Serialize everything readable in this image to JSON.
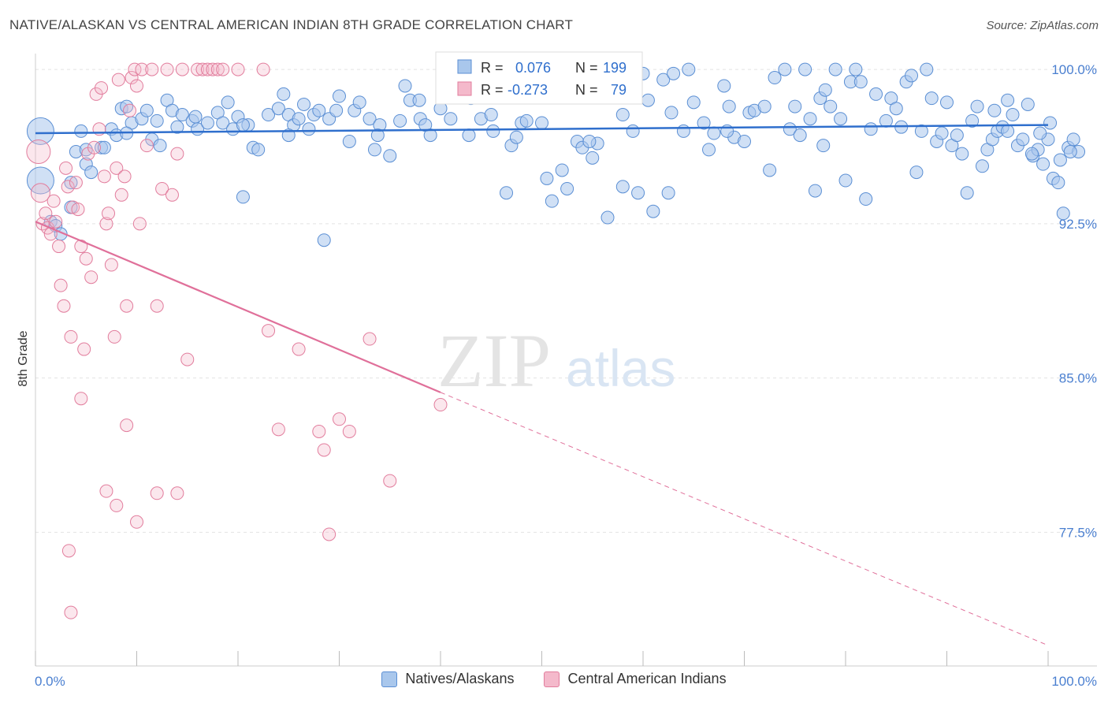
{
  "header": {
    "title": "NATIVE/ALASKAN VS CENTRAL AMERICAN INDIAN 8TH GRADE CORRELATION CHART",
    "source": "Source: ZipAtlas.com"
  },
  "watermark": {
    "zip": "ZIP",
    "atlas": "atlas"
  },
  "colors": {
    "blue_fill": "#a9c7ec",
    "blue_stroke": "#5b8fd4",
    "blue_line": "#2f6fcd",
    "pink_fill": "#f4b9cb",
    "pink_stroke": "#e27d9d",
    "pink_line": "#e0709a",
    "tick_label": "#4a7fd0"
  },
  "stats_box": {
    "rows": [
      {
        "r_label": "R =",
        "r_value": "0.076",
        "n_label": "N =",
        "n_value": "199"
      },
      {
        "r_label": "R =",
        "r_value": "-0.273",
        "n_label": "N =",
        "n_value": "79"
      }
    ]
  },
  "legend": [
    {
      "label": "Natives/Alaskans"
    },
    {
      "label": "Central American Indians"
    }
  ],
  "chart_data": {
    "type": "scatter",
    "ylabel": "8th Grade",
    "xlim": [
      0,
      100
    ],
    "ylim": [
      71,
      101
    ],
    "x_tick_labels": [
      "0.0%",
      "100.0%"
    ],
    "y_ticks": [
      77.5,
      85.0,
      92.5,
      100.0
    ],
    "y_tick_labels": [
      "77.5%",
      "85.0%",
      "92.5%",
      "100.0%"
    ],
    "grid": true,
    "legend_position": "bottom-center",
    "series": [
      {
        "name": "Natives/Alaskans",
        "trend": {
          "x0": 0,
          "y0": 96.9,
          "x1": 100,
          "y1": 97.3
        },
        "points": [
          [
            0.5,
            97.0
          ],
          [
            0.5,
            94.6
          ],
          [
            1.5,
            92.6
          ],
          [
            2.0,
            92.4
          ],
          [
            2.5,
            92.0
          ],
          [
            3.5,
            94.5
          ],
          [
            3.5,
            93.3
          ],
          [
            4.0,
            96.0
          ],
          [
            4.5,
            97.0
          ],
          [
            5,
            96.1
          ],
          [
            5,
            95.4
          ],
          [
            5.5,
            95.0
          ],
          [
            6.5,
            96.2
          ],
          [
            7.5,
            97.1
          ],
          [
            8,
            96.8
          ],
          [
            8.5,
            98.1
          ],
          [
            9,
            98.2
          ],
          [
            9.5,
            97.4
          ],
          [
            10.5,
            97.6
          ],
          [
            11,
            98.0
          ],
          [
            11.5,
            96.6
          ],
          [
            12,
            97.5
          ],
          [
            13,
            98.5
          ],
          [
            13.5,
            98.0
          ],
          [
            14,
            97.2
          ],
          [
            14.5,
            97.8
          ],
          [
            15.5,
            97.5
          ],
          [
            16,
            97.1
          ],
          [
            17,
            97.4
          ],
          [
            18,
            97.9
          ],
          [
            18.5,
            97.4
          ],
          [
            19,
            98.4
          ],
          [
            19.5,
            97.1
          ],
          [
            20,
            97.7
          ],
          [
            20.5,
            93.8
          ],
          [
            21,
            97.3
          ],
          [
            21.5,
            96.2
          ],
          [
            22,
            96.1
          ],
          [
            23,
            97.8
          ],
          [
            24,
            98.1
          ],
          [
            24.5,
            98.8
          ],
          [
            25,
            97.8
          ],
          [
            25.5,
            97.3
          ],
          [
            26,
            97.6
          ],
          [
            26.5,
            98.3
          ],
          [
            27,
            97.1
          ],
          [
            27.5,
            97.8
          ],
          [
            28,
            98.0
          ],
          [
            28.5,
            91.7
          ],
          [
            29,
            97.6
          ],
          [
            30,
            98.7
          ],
          [
            31,
            96.5
          ],
          [
            31.5,
            98.0
          ],
          [
            32,
            98.4
          ],
          [
            33,
            97.6
          ],
          [
            33.5,
            96.1
          ],
          [
            34,
            97.3
          ],
          [
            35,
            95.8
          ],
          [
            36,
            97.5
          ],
          [
            36.5,
            99.2
          ],
          [
            37,
            98.5
          ],
          [
            38,
            97.6
          ],
          [
            38.5,
            97.3
          ],
          [
            39,
            96.8
          ],
          [
            40,
            98.1
          ],
          [
            40.5,
            99.1
          ],
          [
            41,
            97.6
          ],
          [
            42,
            98.8
          ],
          [
            42.5,
            99.0
          ],
          [
            43,
            98.6
          ],
          [
            44,
            97.6
          ],
          [
            45,
            97.8
          ],
          [
            46,
            99.5
          ],
          [
            46.5,
            94.0
          ],
          [
            47,
            96.3
          ],
          [
            47.5,
            96.7
          ],
          [
            48,
            97.4
          ],
          [
            49,
            99.8
          ],
          [
            49.5,
            99.4
          ],
          [
            50,
            97.4
          ],
          [
            50.5,
            94.7
          ],
          [
            51,
            93.6
          ],
          [
            52,
            95.1
          ],
          [
            52.5,
            94.2
          ],
          [
            53,
            99.1
          ],
          [
            53.5,
            96.5
          ],
          [
            54,
            96.2
          ],
          [
            55,
            95.7
          ],
          [
            55.5,
            96.4
          ],
          [
            56,
            99.0
          ],
          [
            56.5,
            92.8
          ],
          [
            57,
            99.5
          ],
          [
            58,
            94.3
          ],
          [
            58.5,
            99.1
          ],
          [
            59,
            97.0
          ],
          [
            59.5,
            94.0
          ],
          [
            60,
            99.8
          ],
          [
            60.5,
            98.5
          ],
          [
            61,
            93.1
          ],
          [
            62,
            99.5
          ],
          [
            62.5,
            94.0
          ],
          [
            63,
            99.8
          ],
          [
            64,
            97.0
          ],
          [
            64.5,
            100.0
          ],
          [
            65,
            98.4
          ],
          [
            66,
            97.4
          ],
          [
            66.5,
            96.1
          ],
          [
            67,
            96.9
          ],
          [
            68,
            99.2
          ],
          [
            68.5,
            98.2
          ],
          [
            69,
            96.7
          ],
          [
            70,
            96.5
          ],
          [
            70.5,
            97.9
          ],
          [
            71,
            98.0
          ],
          [
            72,
            98.2
          ],
          [
            72.5,
            95.1
          ],
          [
            73,
            99.6
          ],
          [
            74,
            100.0
          ],
          [
            74.5,
            97.1
          ],
          [
            75,
            98.2
          ],
          [
            75.5,
            96.8
          ],
          [
            76,
            100.0
          ],
          [
            76.5,
            97.6
          ],
          [
            77,
            94.1
          ],
          [
            77.5,
            98.6
          ],
          [
            78,
            99.0
          ],
          [
            78.5,
            98.2
          ],
          [
            79,
            100.0
          ],
          [
            79.5,
            97.6
          ],
          [
            80,
            94.6
          ],
          [
            80.5,
            99.4
          ],
          [
            81,
            100.0
          ],
          [
            81.5,
            99.4
          ],
          [
            82,
            93.7
          ],
          [
            82.5,
            97.1
          ],
          [
            83,
            98.8
          ],
          [
            84,
            97.5
          ],
          [
            84.5,
            98.6
          ],
          [
            85,
            98.1
          ],
          [
            85.5,
            97.2
          ],
          [
            86,
            99.4
          ],
          [
            86.5,
            99.7
          ],
          [
            87,
            95.0
          ],
          [
            87.5,
            97.0
          ],
          [
            88,
            100.0
          ],
          [
            88.5,
            98.6
          ],
          [
            89,
            96.5
          ],
          [
            89.5,
            96.9
          ],
          [
            90,
            98.4
          ],
          [
            90.5,
            96.3
          ],
          [
            91,
            96.8
          ],
          [
            91.5,
            95.9
          ],
          [
            92,
            94.0
          ],
          [
            92.5,
            97.5
          ],
          [
            93,
            98.2
          ],
          [
            93.5,
            95.3
          ],
          [
            94,
            96.1
          ],
          [
            94.5,
            96.6
          ],
          [
            95,
            97.0
          ],
          [
            95.5,
            97.2
          ],
          [
            96,
            98.5
          ],
          [
            96.5,
            97.8
          ],
          [
            97,
            96.3
          ],
          [
            97.5,
            96.6
          ],
          [
            98,
            98.3
          ],
          [
            98.5,
            95.8
          ],
          [
            99,
            96.1
          ],
          [
            99.5,
            95.4
          ],
          [
            100,
            96.6
          ],
          [
            100.5,
            94.7
          ],
          [
            101,
            94.5
          ],
          [
            101.5,
            93.0
          ],
          [
            102,
            96.2
          ],
          [
            102.5,
            96.6
          ],
          [
            103,
            96.0
          ],
          [
            96,
            97.0
          ],
          [
            94.7,
            98.0
          ],
          [
            77.8,
            96.3
          ],
          [
            68.3,
            97.0
          ],
          [
            62.8,
            97.9
          ],
          [
            58.0,
            97.8
          ],
          [
            54.7,
            96.5
          ],
          [
            48.5,
            97.5
          ],
          [
            45.2,
            97.0
          ],
          [
            42.8,
            96.8
          ],
          [
            37.9,
            98.5
          ],
          [
            33.8,
            96.8
          ],
          [
            29.7,
            98.0
          ],
          [
            25.0,
            96.8
          ],
          [
            20.5,
            97.3
          ],
          [
            15.8,
            97.7
          ],
          [
            12.3,
            96.3
          ],
          [
            9.0,
            96.9
          ],
          [
            6.8,
            96.2
          ],
          [
            98.4,
            95.9
          ],
          [
            99.2,
            96.9
          ],
          [
            100.2,
            97.4
          ],
          [
            101.2,
            95.6
          ],
          [
            102.2,
            96.0
          ]
        ]
      },
      {
        "name": "Central American Indians",
        "trend": {
          "x0": 0,
          "y0": 92.6,
          "x1": 40,
          "y1": 84.3,
          "dash_x1": 100,
          "dash_y1": 72.0
        },
        "points": [
          [
            0.3,
            96.0
          ],
          [
            0.5,
            94.0
          ],
          [
            0.7,
            92.5
          ],
          [
            1,
            93.0
          ],
          [
            1.2,
            92.3
          ],
          [
            1.5,
            92.0
          ],
          [
            1.8,
            93.6
          ],
          [
            2,
            92.6
          ],
          [
            2.3,
            91.4
          ],
          [
            2.5,
            89.5
          ],
          [
            2.8,
            88.5
          ],
          [
            3,
            95.2
          ],
          [
            3.2,
            94.3
          ],
          [
            3.5,
            87.0
          ],
          [
            3.7,
            93.3
          ],
          [
            4,
            94.5
          ],
          [
            4.2,
            93.2
          ],
          [
            4.5,
            91.4
          ],
          [
            4.8,
            86.4
          ],
          [
            5,
            90.8
          ],
          [
            5.2,
            95.9
          ],
          [
            5.5,
            89.9
          ],
          [
            5.8,
            96.2
          ],
          [
            6,
            98.8
          ],
          [
            6.3,
            97.1
          ],
          [
            6.5,
            99.1
          ],
          [
            6.8,
            94.8
          ],
          [
            7,
            92.5
          ],
          [
            7.2,
            93.0
          ],
          [
            7.5,
            90.5
          ],
          [
            7.8,
            87.0
          ],
          [
            8,
            95.2
          ],
          [
            8.2,
            99.5
          ],
          [
            8.5,
            93.9
          ],
          [
            8.8,
            94.8
          ],
          [
            9,
            88.5
          ],
          [
            9.3,
            98.0
          ],
          [
            9.5,
            99.6
          ],
          [
            9.8,
            100.0
          ],
          [
            10,
            99.2
          ],
          [
            10.3,
            92.5
          ],
          [
            10.5,
            100.0
          ],
          [
            11,
            96.3
          ],
          [
            11.5,
            100.0
          ],
          [
            12,
            88.5
          ],
          [
            12.5,
            94.2
          ],
          [
            13,
            100.0
          ],
          [
            13.5,
            93.9
          ],
          [
            14,
            95.9
          ],
          [
            14.5,
            100.0
          ],
          [
            15,
            85.9
          ],
          [
            16,
            100.0
          ],
          [
            16.5,
            100.0
          ],
          [
            17,
            100.0
          ],
          [
            17.5,
            100.0
          ],
          [
            18,
            100.0
          ],
          [
            18.5,
            100.0
          ],
          [
            20,
            100.0
          ],
          [
            22.5,
            100.0
          ],
          [
            23,
            87.3
          ],
          [
            24,
            82.5
          ],
          [
            26,
            86.4
          ],
          [
            28,
            82.4
          ],
          [
            28.5,
            81.5
          ],
          [
            29,
            77.4
          ],
          [
            30,
            83.0
          ],
          [
            31,
            82.4
          ],
          [
            33,
            86.9
          ],
          [
            35,
            80.0
          ],
          [
            40,
            83.7
          ],
          [
            3.3,
            76.6
          ],
          [
            3.5,
            73.6
          ],
          [
            4.5,
            84.0
          ],
          [
            7,
            79.5
          ],
          [
            8,
            78.8
          ],
          [
            9,
            82.7
          ],
          [
            10,
            78.0
          ],
          [
            12,
            79.4
          ],
          [
            14,
            79.4
          ]
        ]
      }
    ]
  }
}
